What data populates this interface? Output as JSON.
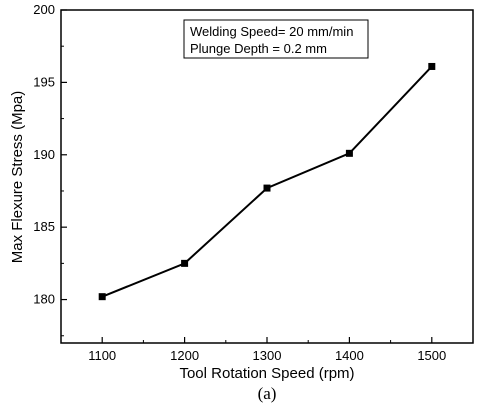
{
  "chart_data": {
    "type": "line",
    "x": [
      1100,
      1200,
      1300,
      1400,
      1500
    ],
    "series": [
      {
        "values": [
          180.2,
          182.5,
          187.7,
          190.1,
          196.1
        ]
      }
    ],
    "xlabel": "Tool Rotation Speed (rpm)",
    "ylabel": "Max Flexure Stress (Mpa)",
    "xlim": [
      1050,
      1550
    ],
    "ylim": [
      177,
      200
    ],
    "xticks": [
      1100,
      1200,
      1300,
      1400,
      1500
    ],
    "yticks": [
      180,
      185,
      190,
      195,
      200
    ],
    "annotations": [
      "Welding Speed= 20 mm/min",
      "Plunge Depth = 0.2 mm"
    ],
    "caption": "(a)",
    "grid": false,
    "marker": "square",
    "colors": {
      "line": "#000000",
      "marker": "#000000"
    }
  }
}
